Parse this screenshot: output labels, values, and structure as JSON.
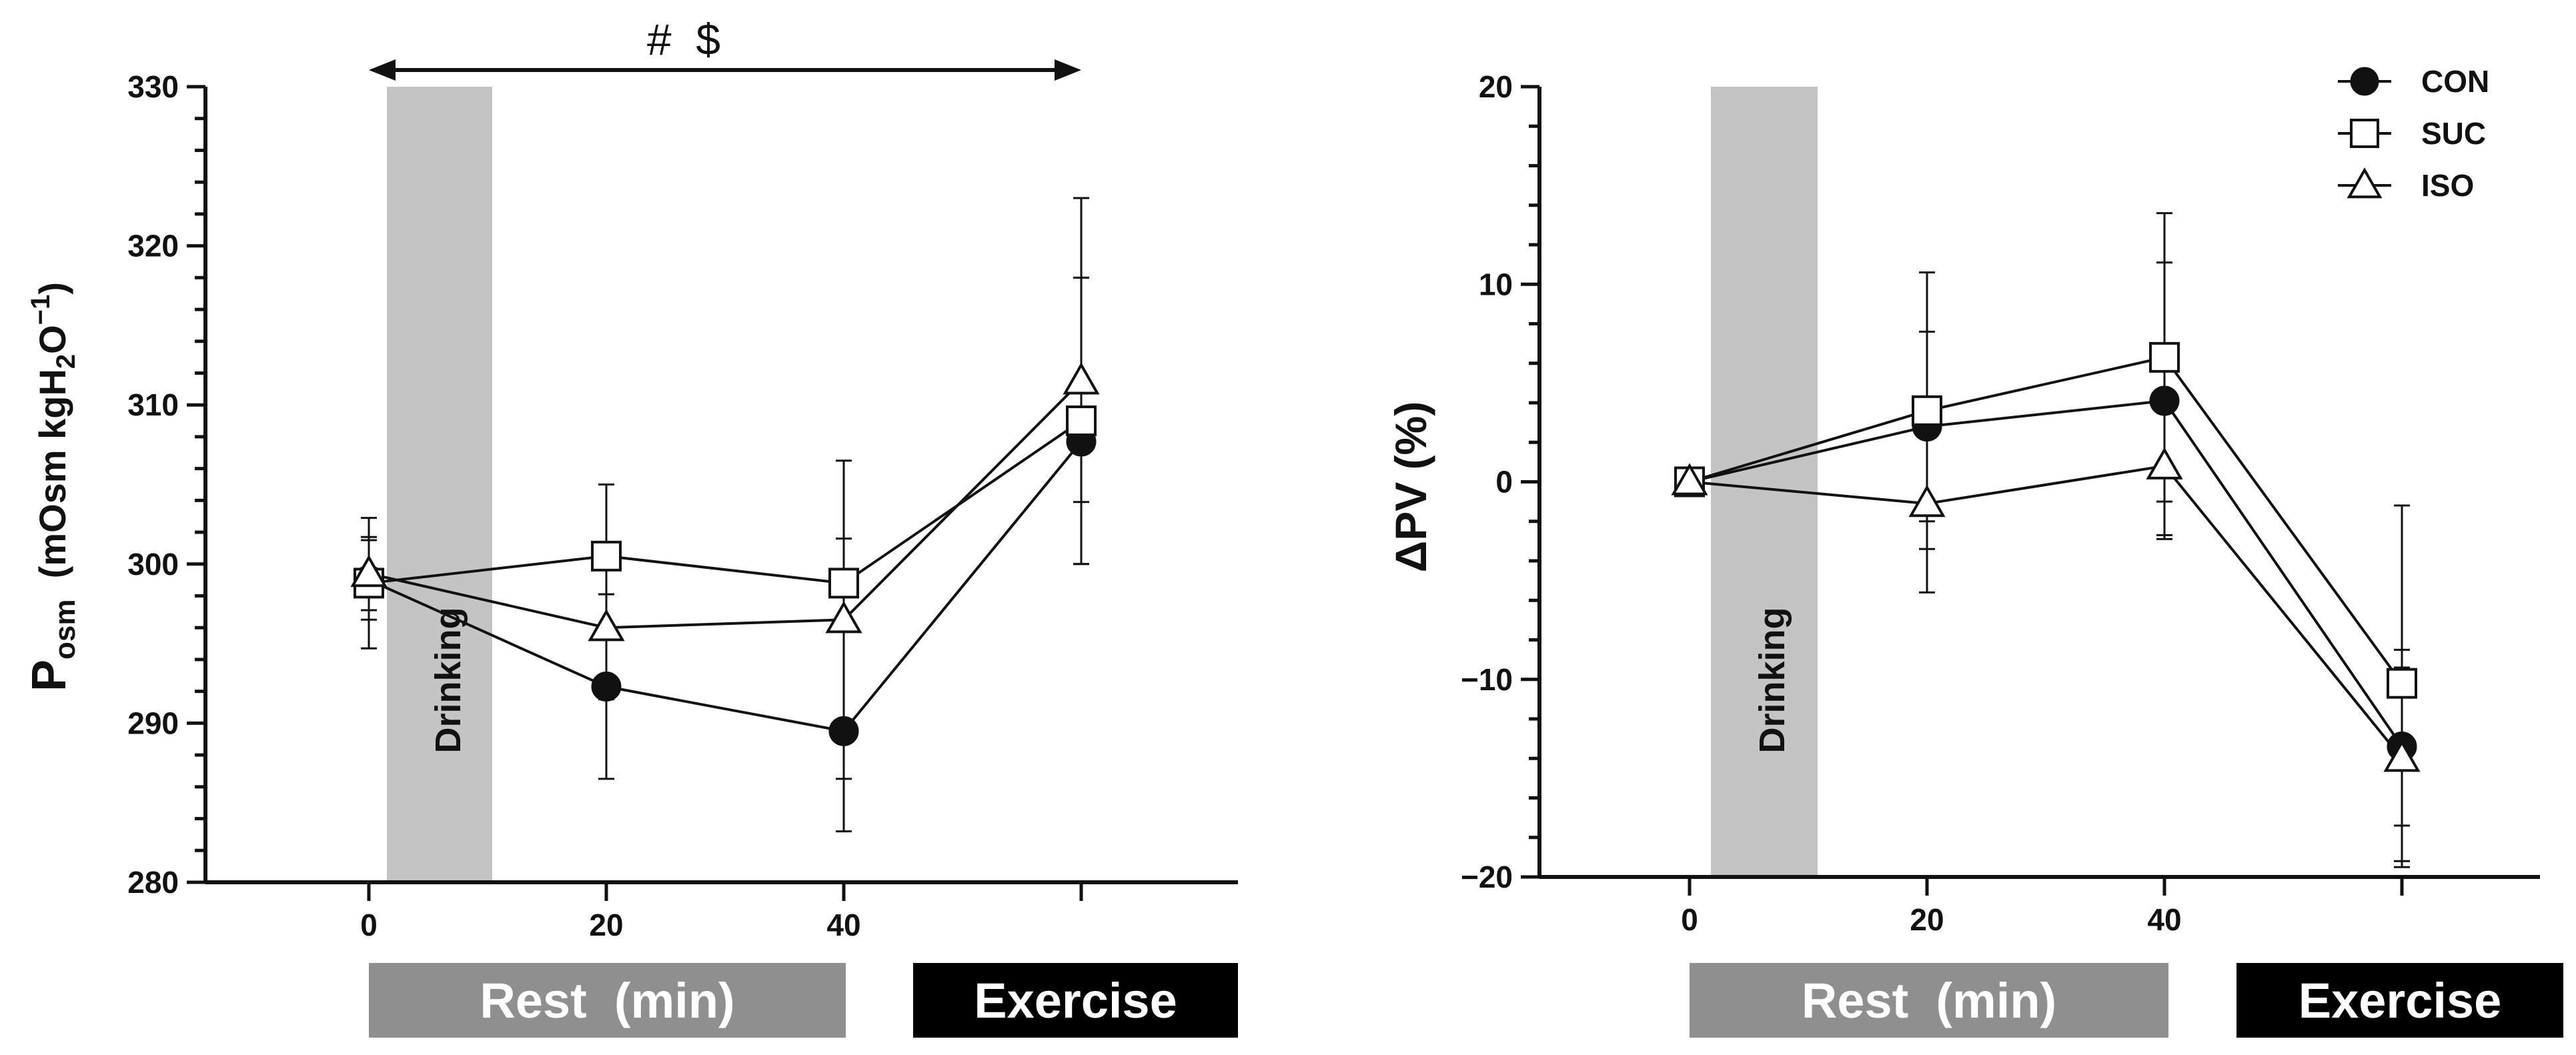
{
  "chart_data": [
    {
      "type": "line",
      "title": "",
      "xlabel": "Rest  (min)",
      "x_box_labels": {
        "rest": "Rest  (min)",
        "exercise": "Exercise"
      },
      "ylabel": {
        "main": "P",
        "sub": "osm",
        "units_pre": "  (mOsm kgH",
        "units_sub": "2",
        "units_mid": "O",
        "units_sup": "−1",
        "units_post": ")"
      },
      "ylim": [
        280,
        330
      ],
      "yticks": [
        "280",
        "290",
        "300",
        "310",
        "320",
        "330"
      ],
      "x_positions": [
        0,
        20,
        40,
        60
      ],
      "xticks": [
        "0",
        "20",
        "40"
      ],
      "shaded_label": "Drinking",
      "significance": "#  $",
      "series": [
        {
          "name": "CON",
          "marker": "circle-filled",
          "values": [
            299.0,
            292.3,
            289.5,
            307.7
          ],
          "errors": [
            2.5,
            5.8,
            6.3,
            3.8
          ]
        },
        {
          "name": "SUC",
          "marker": "square-open",
          "values": [
            298.8,
            300.5,
            298.8,
            309.0
          ],
          "errors": [
            4.1,
            4.5,
            2.8,
            9.0
          ]
        },
        {
          "name": "ISO",
          "marker": "triangle-open",
          "values": [
            299.4,
            296.0,
            296.5,
            311.5
          ],
          "errors": [
            2.3,
            4.5,
            10.0,
            11.5
          ]
        }
      ]
    },
    {
      "type": "line",
      "title": "",
      "xlabel": "Rest  (min)",
      "x_box_labels": {
        "rest": "Rest  (min)",
        "exercise": "Exercise"
      },
      "ylabel": "ΔPV (%)",
      "ylim": [
        -20,
        20
      ],
      "yticks": [
        "−20",
        "−10",
        "0",
        "10",
        "20"
      ],
      "x_positions": [
        0,
        20,
        40,
        60
      ],
      "xticks": [
        "0",
        "20",
        "40"
      ],
      "shaded_label": "Drinking",
      "legend": [
        {
          "name": "CON",
          "marker": "circle-filled"
        },
        {
          "name": "SUC",
          "marker": "square-open"
        },
        {
          "name": "ISO",
          "marker": "triangle-open"
        }
      ],
      "series": [
        {
          "name": "CON",
          "marker": "circle-filled",
          "values": [
            0,
            2.8,
            4.1,
            -13.4
          ],
          "errors": [
            0,
            4.8,
            7.0,
            4.0
          ]
        },
        {
          "name": "SUC",
          "marker": "square-open",
          "values": [
            0,
            3.6,
            6.3,
            -10.2
          ],
          "errors": [
            0,
            7.0,
            7.3,
            9.0
          ]
        },
        {
          "name": "ISO",
          "marker": "triangle-open",
          "values": [
            0,
            -1.1,
            0.8,
            -14.0
          ],
          "errors": [
            0,
            4.5,
            3.5,
            5.5
          ]
        }
      ]
    }
  ]
}
